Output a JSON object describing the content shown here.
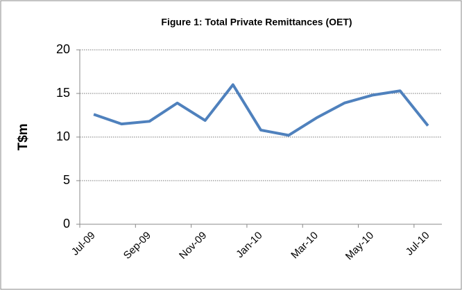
{
  "chart_data": {
    "type": "line",
    "title": "Figure 1: Total Private Remittances (OET)",
    "y_label": "T$m",
    "categories": [
      "Jul-09",
      null,
      "Sep-09",
      null,
      "Nov-09",
      null,
      "Jan-10",
      null,
      "Mar-10",
      null,
      "May-10",
      null,
      "Jul-10"
    ],
    "series": [
      {
        "name": "Total Private Remittances",
        "color": "#4f81bd",
        "values": [
          12.6,
          11.5,
          11.8,
          13.9,
          11.9,
          16.0,
          10.8,
          10.2,
          12.2,
          13.9,
          14.8,
          15.3,
          11.3
        ]
      }
    ],
    "ylim": [
      0,
      20
    ],
    "yticks": [
      0,
      5,
      10,
      15,
      20
    ],
    "grid": true
  }
}
